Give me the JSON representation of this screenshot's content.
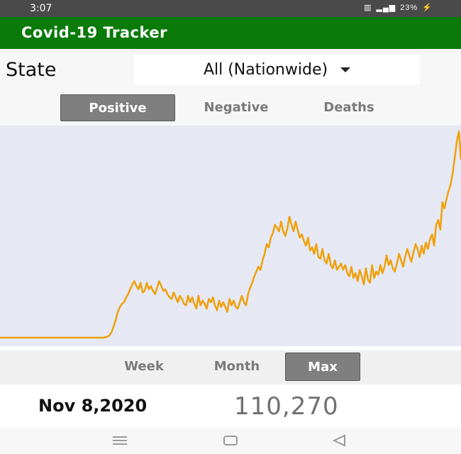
{
  "status_bar": {
    "time": "3:07",
    "battery": "23%"
  },
  "app": {
    "title": "Covid-19 Tracker"
  },
  "state": {
    "label": "State",
    "selected": "All (Nationwide)"
  },
  "metric_tabs": [
    {
      "label": "Positive",
      "active": true
    },
    {
      "label": "Negative",
      "active": false
    },
    {
      "label": "Deaths",
      "active": false
    }
  ],
  "range_tabs": [
    {
      "label": "Week",
      "active": false
    },
    {
      "label": "Month",
      "active": false
    },
    {
      "label": "Max",
      "active": true
    }
  ],
  "summary": {
    "date": "Nov 8,2020",
    "value": "110,270"
  },
  "colors": {
    "app_bar": "#0a7a0a",
    "line": "#f0a00a",
    "chart_bg": "#e6e9f4"
  },
  "chart_data": {
    "type": "line",
    "title": "",
    "xlabel": "",
    "ylabel": "",
    "series": [
      {
        "values": [
          0,
          0,
          0,
          0,
          0,
          0,
          0,
          0,
          0,
          0,
          0,
          0,
          0,
          0,
          0,
          0,
          0,
          0,
          0,
          0,
          0,
          0,
          0,
          0,
          0,
          0,
          0,
          0,
          0,
          0,
          0,
          0,
          0,
          0,
          0,
          0,
          0,
          0,
          0,
          0,
          0,
          0,
          0,
          0,
          0,
          0,
          0,
          0,
          0,
          0,
          50,
          200,
          600,
          1500,
          3500,
          7000,
          11000,
          16000,
          19000,
          21000,
          22000,
          25000,
          27000,
          30000,
          33000,
          35000,
          32000,
          30000,
          34000,
          28000,
          29000,
          34000,
          30000,
          32000,
          29000,
          27000,
          31000,
          35000,
          32000,
          29000,
          30000,
          27000,
          25000,
          24000,
          28000,
          25000,
          22000,
          26000,
          24000,
          21000,
          20000,
          26000,
          22000,
          25000,
          21000,
          18000,
          26000,
          20000,
          23000,
          21000,
          18000,
          24000,
          22000,
          25000,
          20000,
          17000,
          23000,
          19000,
          22000,
          19000,
          16000,
          24000,
          20000,
          23000,
          19000,
          18000,
          22000,
          26000,
          22000,
          20000,
          27000,
          31000,
          34000,
          38000,
          41000,
          44000,
          42000,
          48000,
          52000,
          58000,
          56000,
          62000,
          65000,
          70000,
          68000,
          66000,
          72000,
          66000,
          63000,
          68000,
          75000,
          70000,
          66000,
          72000,
          67000,
          62000,
          64000,
          60000,
          57000,
          62000,
          54000,
          56000,
          52000,
          58000,
          50000,
          49000,
          55000,
          48000,
          46000,
          52000,
          45000,
          43000,
          48000,
          42000,
          44000,
          46000,
          42000,
          45000,
          40000,
          38000,
          44000,
          37000,
          40000,
          35000,
          42000,
          38000,
          33000,
          43000,
          36000,
          34000,
          45000,
          37000,
          41000,
          39000,
          45000,
          40000,
          44000,
          51000,
          45000,
          48000,
          43000,
          41000,
          46000,
          52000,
          48000,
          44000,
          50000,
          55000,
          51000,
          47000,
          53000,
          58000,
          55000,
          50000,
          57000,
          52000,
          59000,
          55000,
          61000,
          64000,
          57000,
          70000,
          73000,
          67000,
          84000,
          80000,
          86000,
          91000,
          95000,
          102000,
          112000,
          122000,
          128000,
          110270
        ]
      }
    ]
  }
}
